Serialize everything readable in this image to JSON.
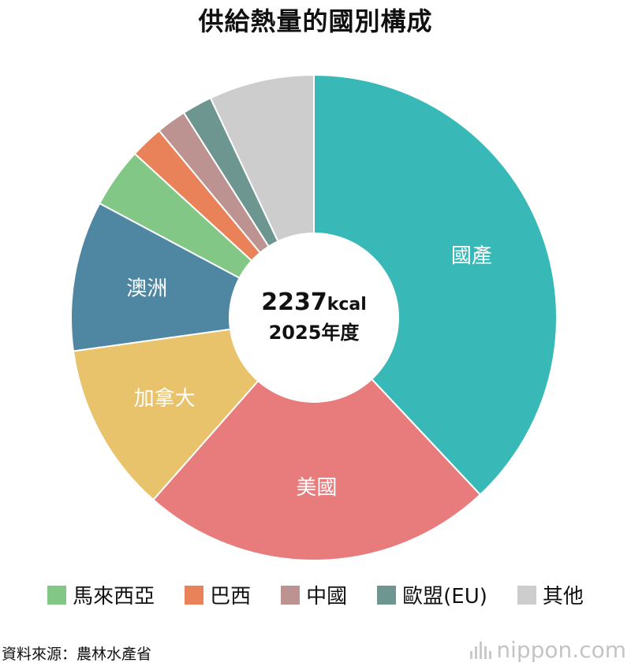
{
  "title": "供給熱量的國別構成",
  "center": {
    "total": "2237",
    "unit": "kcal",
    "year": "2025年度"
  },
  "chart_data": {
    "type": "pie",
    "title": "供給熱量的國別構成",
    "slices": [
      {
        "label": "國產",
        "value": 38.0,
        "color": "#38b9b7",
        "show_label": true
      },
      {
        "label": "美國",
        "value": 23.5,
        "color": "#e87b7b",
        "show_label": true
      },
      {
        "label": "加拿大",
        "value": 11.3,
        "color": "#e8c36c",
        "show_label": true
      },
      {
        "label": "澳洲",
        "value": 10.0,
        "color": "#4f87a3",
        "show_label": true
      },
      {
        "label": "馬來西亞",
        "value": 4.0,
        "color": "#82c785",
        "show_label": false
      },
      {
        "label": "巴西",
        "value": 2.2,
        "color": "#ea8259",
        "show_label": false
      },
      {
        "label": "中國",
        "value": 2.0,
        "color": "#bd9392",
        "show_label": false
      },
      {
        "label": "歐盟(EU)",
        "value": 2.0,
        "color": "#6c968f",
        "show_label": false
      },
      {
        "label": "其他",
        "value": 7.0,
        "color": "#cdcdcd",
        "show_label": false
      }
    ]
  },
  "legend": [
    {
      "label": "馬來西亞",
      "color": "#82c785"
    },
    {
      "label": "巴西",
      "color": "#ea8259"
    },
    {
      "label": "中國",
      "color": "#bd9392"
    },
    {
      "label": "歐盟(EU)",
      "color": "#6c968f"
    },
    {
      "label": "其他",
      "color": "#cdcdcd"
    }
  ],
  "source": "資料來源：農林水產省",
  "logo": {
    "text": "nippon.com"
  }
}
